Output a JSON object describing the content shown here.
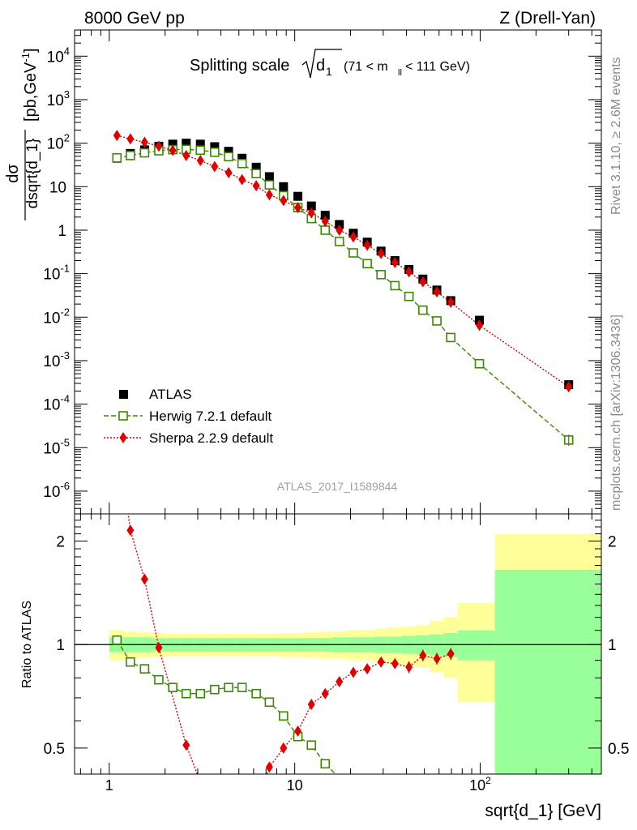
{
  "header": {
    "left": "8000 GeV pp",
    "right": "Z (Drell-Yan)"
  },
  "side_text": {
    "top": "Rivet 3.1.10, ≥ 2.6M events",
    "bottom": "mcplots.cern.ch [arXiv:1306.3436]"
  },
  "chart_data": [
    {
      "type": "scatter",
      "panel": "main",
      "title_parts": {
        "main": "Splitting scale",
        "var": "d",
        "var_sub": "1",
        "cut_a": "(71 < m",
        "cut_sub": "ll",
        "cut_b": " < 111 GeV)"
      },
      "ylabel_parts": {
        "num": "dσ",
        "den": "dsqrt{d_1}",
        "unit_a": "[pb,GeV",
        "unit_sup": "-1",
        "unit_b": "]"
      },
      "watermark": "ATLAS_2017_I1589844",
      "x_scale": "log",
      "y_scale": "log",
      "xlim": [
        0.65,
        450
      ],
      "ylim": [
        3e-07,
        40000
      ],
      "ytick_labels": [
        {
          "base": "10",
          "exp": "-6",
          "value": 1e-06
        },
        {
          "base": "10",
          "exp": "-5",
          "value": 1e-05
        },
        {
          "base": "10",
          "exp": "-4",
          "value": 0.0001
        },
        {
          "base": "10",
          "exp": "-3",
          "value": 0.001
        },
        {
          "base": "10",
          "exp": "-2",
          "value": 0.01
        },
        {
          "base": "10",
          "exp": "-1",
          "value": 0.1
        },
        {
          "base": "1",
          "exp": "",
          "value": 1
        },
        {
          "base": "10",
          "exp": "",
          "value": 10
        },
        {
          "base": "10",
          "exp": "2",
          "value": 100
        },
        {
          "base": "10",
          "exp": "3",
          "value": 1000
        },
        {
          "base": "10",
          "exp": "4",
          "value": 10000
        }
      ],
      "legend": {
        "placement": "bottom-left",
        "entries": [
          "ATLAS",
          "Herwig 7.2.1 default",
          "Sherpa 2.2.9 default"
        ]
      },
      "x": [
        1.1,
        1.3,
        1.55,
        1.85,
        2.2,
        2.6,
        3.1,
        3.7,
        4.4,
        5.2,
        6.2,
        7.3,
        8.7,
        10.4,
        12.3,
        14.6,
        17.4,
        20.7,
        24.6,
        29.2,
        34.7,
        41.3,
        49.1,
        58.4,
        69.4,
        99.0,
        300.0
      ],
      "series": [
        {
          "name": "ATLAS",
          "color": "#000000",
          "marker": "square",
          "values": [
            45,
            58,
            70,
            85,
            95,
            100,
            95,
            83,
            65,
            45,
            28,
            17,
            10,
            6,
            3.6,
            2.2,
            1.35,
            0.85,
            0.53,
            0.33,
            0.2,
            0.125,
            0.075,
            0.042,
            0.024,
            0.0085,
            0.00028
          ]
        },
        {
          "name": "Herwig 7.2.1 default",
          "color": "#3a8a00",
          "marker": "open-square",
          "line": "dashed",
          "values": [
            46,
            52,
            60,
            67,
            71,
            72,
            69,
            62,
            49,
            34,
            20,
            11,
            6.2,
            3.3,
            1.85,
            1.0,
            0.55,
            0.3,
            0.17,
            0.095,
            0.053,
            0.03,
            0.0145,
            0.0082,
            0.0034,
            0.00085,
            1.5e-05
          ]
        },
        {
          "name": "Sherpa 2.2.9 default",
          "color": "#e00000",
          "marker": "diamond",
          "line": "dotted",
          "values": [
            150,
            125,
            105,
            85,
            68,
            52,
            40,
            29,
            21,
            14.5,
            10.5,
            6.5,
            4.8,
            3.3,
            2.5,
            1.6,
            1.0,
            0.7,
            0.45,
            0.29,
            0.18,
            0.11,
            0.065,
            0.038,
            0.022,
            0.0065,
            0.00025
          ]
        }
      ]
    },
    {
      "type": "scatter",
      "panel": "ratio",
      "ylabel": "Ratio to ATLAS",
      "xlabel": "sqrt{d_1} [GeV]",
      "x_scale": "log",
      "y_scale": "log",
      "xlim": [
        0.65,
        450
      ],
      "ylim": [
        0.42,
        2.4
      ],
      "xtick_labels": [
        {
          "base": "1",
          "exp": "",
          "value": 1
        },
        {
          "base": "10",
          "exp": "",
          "value": 10
        },
        {
          "base": "10",
          "exp": "2",
          "value": 100
        }
      ],
      "ytick_labels": [
        {
          "label": "0.5",
          "value": 0.5
        },
        {
          "label": "1",
          "value": 1
        },
        {
          "label": "2",
          "value": 2
        }
      ],
      "reference_line": 1,
      "band_edges": [
        1.0,
        1.2,
        1.42,
        1.7,
        2.02,
        2.4,
        2.85,
        3.4,
        4.05,
        4.8,
        5.7,
        6.75,
        8.0,
        9.5,
        11.3,
        13.4,
        15.9,
        18.9,
        22.5,
        26.8,
        31.8,
        37.8,
        44.9,
        53.4,
        63.5,
        75.5,
        120.0,
        450.0
      ],
      "band_inner": [
        0.05,
        0.05,
        0.05,
        0.045,
        0.045,
        0.045,
        0.045,
        0.045,
        0.045,
        0.045,
        0.045,
        0.045,
        0.045,
        0.045,
        0.045,
        0.045,
        0.05,
        0.05,
        0.05,
        0.055,
        0.055,
        0.06,
        0.065,
        0.07,
        0.08,
        0.1,
        0.65
      ],
      "band_outer": [
        0.1,
        0.09,
        0.085,
        0.08,
        0.075,
        0.075,
        0.075,
        0.075,
        0.075,
        0.075,
        0.075,
        0.075,
        0.08,
        0.08,
        0.085,
        0.09,
        0.09,
        0.1,
        0.1,
        0.11,
        0.12,
        0.13,
        0.14,
        0.17,
        0.2,
        0.32,
        1.1
      ],
      "series": [
        {
          "name": "Herwig 7.2.1 default",
          "color": "#3a8a00",
          "x": [
            1.1,
            1.3,
            1.55,
            1.85,
            2.2,
            2.6,
            3.1,
            3.7,
            4.4,
            5.2,
            6.2,
            7.3,
            8.7,
            10.4,
            12.3,
            14.6
          ],
          "values": [
            1.03,
            0.89,
            0.85,
            0.79,
            0.75,
            0.72,
            0.72,
            0.74,
            0.75,
            0.75,
            0.72,
            0.68,
            0.62,
            0.54,
            0.51,
            0.45
          ]
        },
        {
          "name": "Sherpa 2.2.9 default",
          "color": "#e00000",
          "x": [
            1.3,
            1.55,
            1.85,
            2.6,
            7.3,
            8.7,
            10.4,
            12.3,
            14.6,
            17.4,
            20.7,
            24.6,
            29.2,
            34.7,
            41.3,
            49.1,
            58.4,
            69.4
          ],
          "values": [
            2.15,
            1.55,
            0.98,
            0.51,
            0.44,
            0.5,
            0.56,
            0.67,
            0.72,
            0.78,
            0.83,
            0.85,
            0.89,
            0.88,
            0.86,
            0.93,
            0.91,
            0.94
          ]
        }
      ]
    }
  ]
}
